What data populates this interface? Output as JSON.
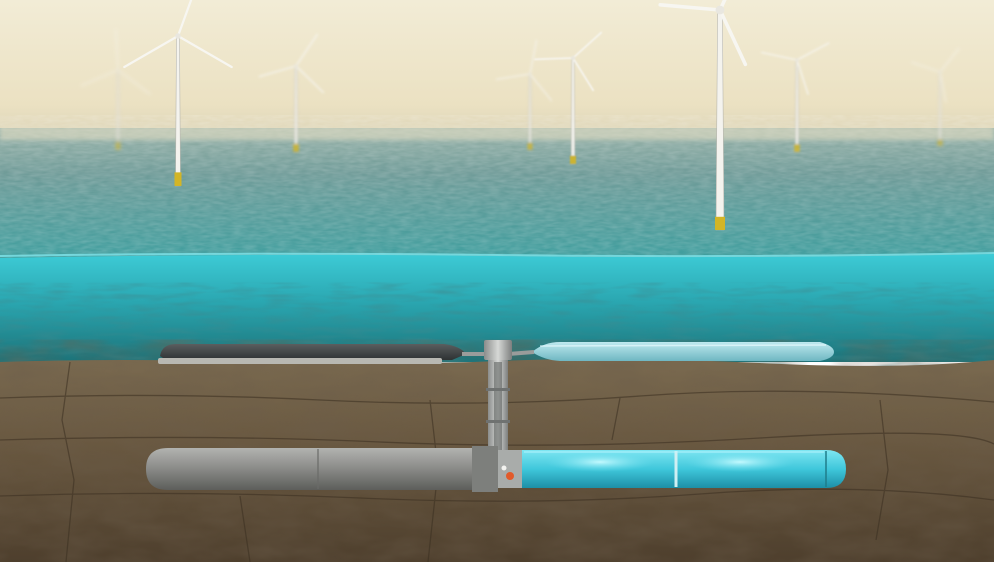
{
  "scene": {
    "kind": "offshore-wind-seabed-energy-storage-illustration",
    "elements": [
      "sky",
      "sea-surface",
      "wind-turbines",
      "underwater-layer",
      "seabed-rock",
      "surface-reservoir-dark",
      "surface-reservoir-light",
      "vertical-shaft",
      "storage-tube-concrete",
      "storage-tube-glowing"
    ],
    "turbine_count": 8,
    "colors": {
      "sky_top": "#f0ead3",
      "sky_haze": "#e9e0c4",
      "sea_far": "#6f9a9a",
      "sea_near": "#3f9f9f",
      "water_top": "#39c3cf",
      "water_deep": "#1f7d83",
      "rock_light": "#8a7659",
      "rock_dark": "#4a3c2b",
      "tube_concrete": "#8e8f8c",
      "tube_glow": "#58d9ea",
      "turbine_base": "#d3b526"
    }
  }
}
